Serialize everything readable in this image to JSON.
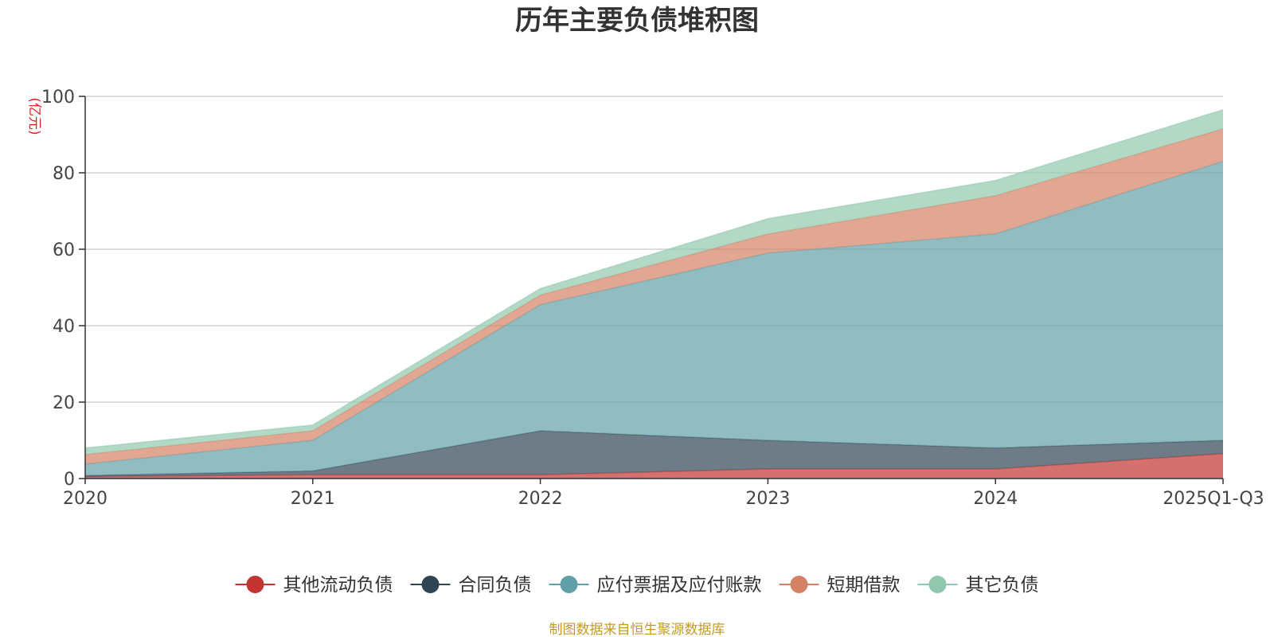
{
  "chart_data": {
    "type": "area",
    "stacked": true,
    "title": "历年主要负债堆积图",
    "ylabel": "(亿元)",
    "xlabel": "",
    "ylim": [
      0,
      100
    ],
    "yticks": [
      "0",
      "20",
      "40",
      "60",
      "80",
      "100"
    ],
    "categories": [
      "2020",
      "2021",
      "2022",
      "2023",
      "2024",
      "2025Q1-Q3"
    ],
    "grid": true,
    "legend_position": "bottom",
    "series": [
      {
        "name": "其他流动负债",
        "color": "#c23531",
        "values": [
          0.5,
          1.0,
          1.0,
          2.5,
          2.5,
          6.5
        ]
      },
      {
        "name": "合同负债",
        "color": "#2f4554",
        "values": [
          0.3,
          1.0,
          11.5,
          7.5,
          5.5,
          3.5
        ]
      },
      {
        "name": "应付票据及应付账款",
        "color": "#61a0a8",
        "values": [
          3.0,
          8.0,
          33.0,
          49.0,
          56.0,
          73.0
        ]
      },
      {
        "name": "短期借款",
        "color": "#d48265",
        "values": [
          2.5,
          2.5,
          2.5,
          5.0,
          10.0,
          8.5
        ]
      },
      {
        "name": "其它负债",
        "color": "#91c7ae",
        "values": [
          1.7,
          1.5,
          1.7,
          4.0,
          4.0,
          5.0
        ]
      }
    ],
    "source": "制图数据来自恒生聚源数据库"
  }
}
